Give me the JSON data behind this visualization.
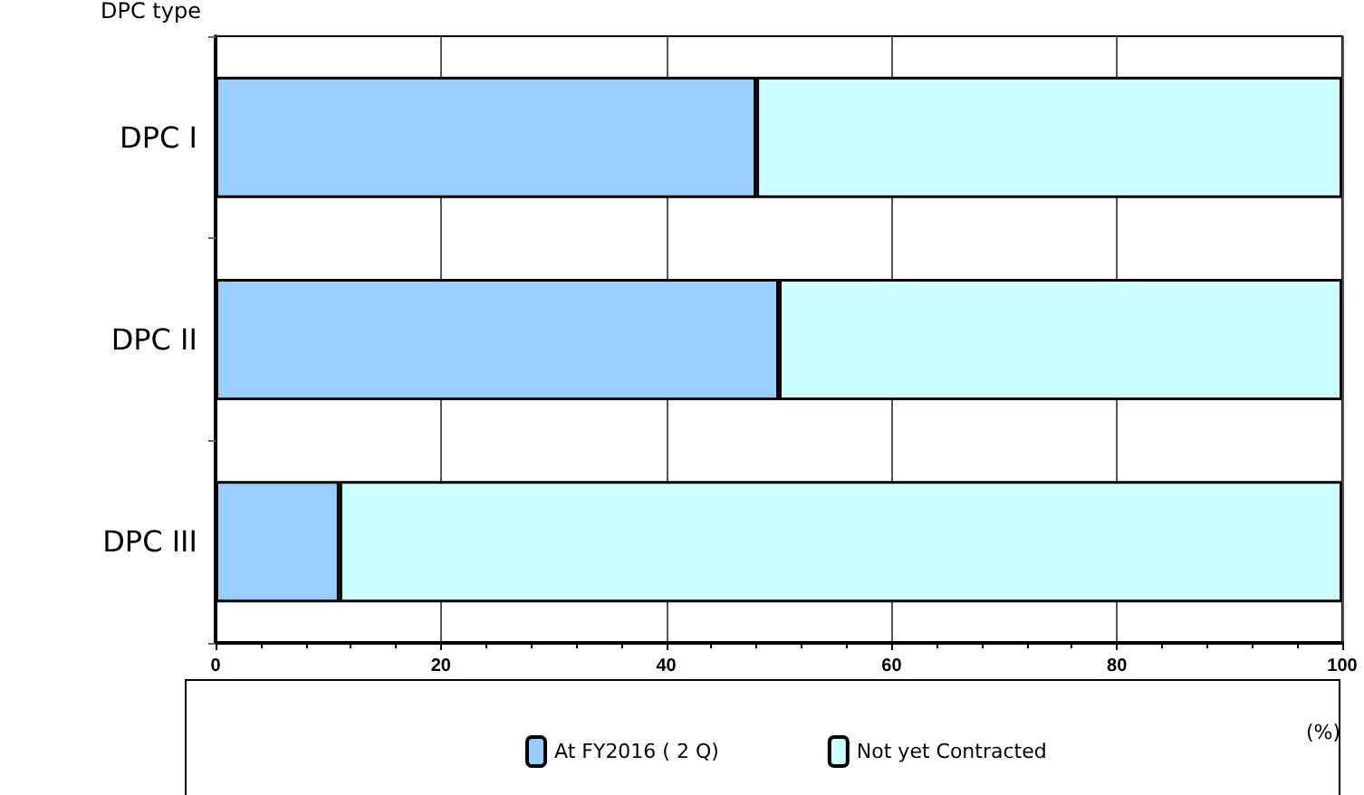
{
  "chart_data": {
    "type": "bar",
    "orientation": "horizontal",
    "stacked": true,
    "ylabel": "DPC type",
    "xlabel": "(%)",
    "categories": [
      "DPC I",
      "DPC II",
      "DPC III"
    ],
    "series": [
      {
        "name": "At FY2016 ( 2 Q)",
        "color": "#99ccff",
        "values": [
          48,
          50,
          11
        ]
      },
      {
        "name": "Not yet Contracted",
        "color": "#ccffff",
        "values": [
          52,
          50,
          89
        ]
      }
    ],
    "xlim": [
      0,
      100
    ],
    "xticks": [
      0,
      20,
      40,
      60,
      80,
      100
    ],
    "grid": "x",
    "legend": "bottom"
  }
}
